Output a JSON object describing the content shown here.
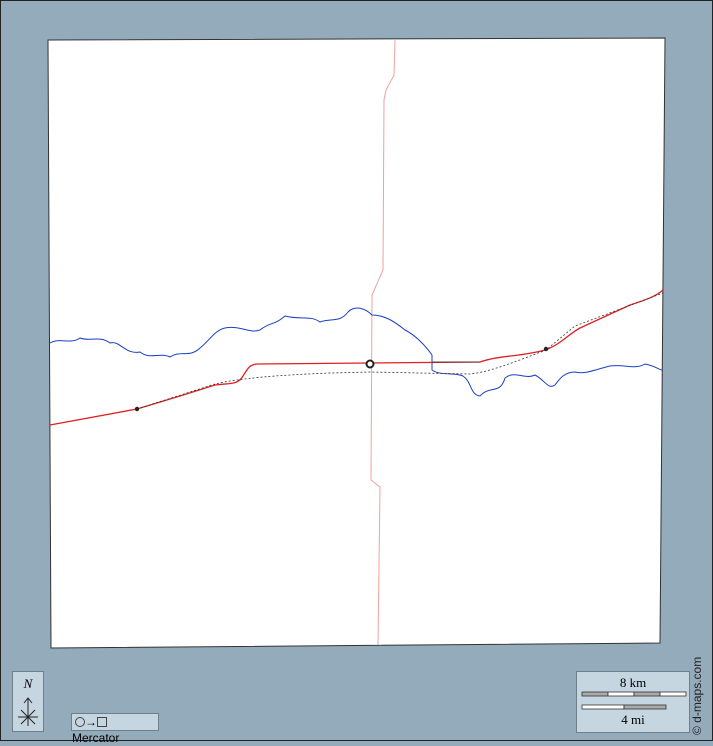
{
  "colors": {
    "background": "#94abbb",
    "land": "#ffffff",
    "river": "#1a3fc4",
    "road_main": "#e02020",
    "road_minor": "#f0a0a0",
    "railway": "#333333",
    "panel": "#c5d6e0"
  },
  "north_arrow": {
    "label": "N",
    "icon": "compass-rose-icon"
  },
  "projection": {
    "label": "Mercator",
    "icon": "circle-to-square-icon",
    "arrow": "→"
  },
  "scale": {
    "km_label": "8 km",
    "mi_label": "4 mi"
  },
  "credit": "© d-maps.com"
}
